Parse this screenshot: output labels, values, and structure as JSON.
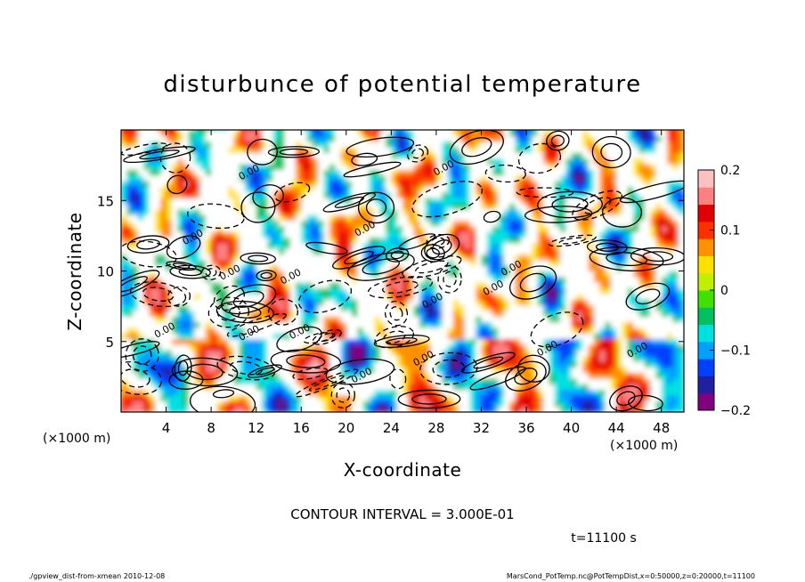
{
  "chart_data": {
    "type": "heatmap",
    "title": "disturbunce of potential temperature",
    "xlabel": "X-coordinate",
    "ylabel": "Z-coordinate",
    "x_unit_left": "(×1000 m)",
    "x_unit_right": "(×1000 m)",
    "xlim": [
      0,
      50
    ],
    "ylim": [
      0,
      20
    ],
    "x_ticks": [
      4,
      8,
      12,
      16,
      20,
      24,
      28,
      32,
      36,
      40,
      44,
      48
    ],
    "y_ticks": [
      5,
      10,
      15
    ],
    "colorbar": {
      "range": [
        -0.2,
        0.2
      ],
      "tick_values": [
        0.2,
        0.1,
        0,
        -0.1,
        -0.2
      ],
      "tick_labels": [
        "0.2",
        "0.1",
        "0",
        "−0.1",
        "−0.2"
      ],
      "colors": [
        "#800080",
        "#2020a0",
        "#0040ff",
        "#00a0ff",
        "#00e0e0",
        "#00c060",
        "#40e000",
        "#c0f000",
        "#ffe000",
        "#ff9000",
        "#ff3000",
        "#e00000",
        "#ff8080",
        "#ffc0c0"
      ]
    },
    "contour_interval_text": "CONTOUR INTERVAL = 3.000E-01",
    "contour_label_text": "0.00",
    "time_text": "t=11100 s"
  },
  "footer": {
    "left": "./gpview_dist-from-xmean  2010-12-08",
    "right": "MarsCond_PotTemp.nc@PotTempDist,x=0:50000,z=0:20000,t=11100"
  }
}
